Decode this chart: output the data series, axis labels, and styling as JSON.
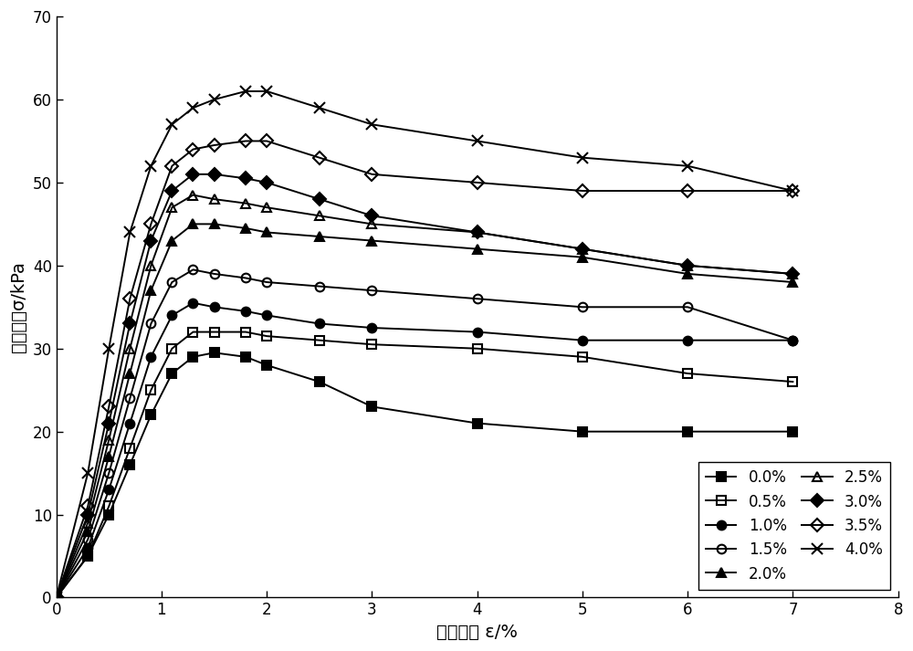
{
  "title": "",
  "xlabel": "轴向应变 ε/%",
  "ylabel": "轴向应力σ/kPa",
  "xlim": [
    0,
    8
  ],
  "ylim": [
    0,
    70
  ],
  "xticks": [
    0,
    1,
    2,
    3,
    4,
    5,
    6,
    7,
    8
  ],
  "yticks": [
    0,
    10,
    20,
    30,
    40,
    50,
    60,
    70
  ],
  "series": [
    {
      "label": "0.0%",
      "marker": "s",
      "fillstyle": "full",
      "x": [
        0,
        0.3,
        0.5,
        0.7,
        0.9,
        1.1,
        1.3,
        1.5,
        1.8,
        2.0,
        2.5,
        3.0,
        4.0,
        5.0,
        6.0,
        7.0
      ],
      "y": [
        0,
        5,
        10,
        16,
        22,
        27,
        29,
        29.5,
        29,
        28,
        26,
        23,
        21,
        20,
        20,
        20
      ]
    },
    {
      "label": "0.5%",
      "marker": "s",
      "fillstyle": "none",
      "x": [
        0,
        0.3,
        0.5,
        0.7,
        0.9,
        1.1,
        1.3,
        1.5,
        1.8,
        2.0,
        2.5,
        3.0,
        4.0,
        5.0,
        6.0,
        7.0
      ],
      "y": [
        0,
        5,
        11,
        18,
        25,
        30,
        32,
        32,
        32,
        31.5,
        31,
        30.5,
        30,
        29,
        27,
        26
      ]
    },
    {
      "label": "1.0%",
      "marker": "o",
      "fillstyle": "full",
      "x": [
        0,
        0.3,
        0.5,
        0.7,
        0.9,
        1.1,
        1.3,
        1.5,
        1.8,
        2.0,
        2.5,
        3.0,
        4.0,
        5.0,
        6.0,
        7.0
      ],
      "y": [
        0,
        6,
        13,
        21,
        29,
        34,
        35.5,
        35,
        34.5,
        34,
        33,
        32.5,
        32,
        31,
        31,
        31
      ]
    },
    {
      "label": "1.5%",
      "marker": "o",
      "fillstyle": "none",
      "x": [
        0,
        0.3,
        0.5,
        0.7,
        0.9,
        1.1,
        1.3,
        1.5,
        1.8,
        2.0,
        2.5,
        3.0,
        4.0,
        5.0,
        6.0,
        7.0
      ],
      "y": [
        0,
        7,
        15,
        24,
        33,
        38,
        39.5,
        39,
        38.5,
        38,
        37.5,
        37,
        36,
        35,
        35,
        31
      ]
    },
    {
      "label": "2.0%",
      "marker": "^",
      "fillstyle": "full",
      "x": [
        0,
        0.3,
        0.5,
        0.7,
        0.9,
        1.1,
        1.3,
        1.5,
        1.8,
        2.0,
        2.5,
        3.0,
        4.0,
        5.0,
        6.0,
        7.0
      ],
      "y": [
        0,
        8,
        17,
        27,
        37,
        43,
        45,
        45,
        44.5,
        44,
        43.5,
        43,
        42,
        41,
        39,
        38
      ]
    },
    {
      "label": "2.5%",
      "marker": "^",
      "fillstyle": "none",
      "x": [
        0,
        0.3,
        0.5,
        0.7,
        0.9,
        1.1,
        1.3,
        1.5,
        1.8,
        2.0,
        2.5,
        3.0,
        4.0,
        5.0,
        6.0,
        7.0
      ],
      "y": [
        0,
        9,
        19,
        30,
        40,
        47,
        48.5,
        48,
        47.5,
        47,
        46,
        45,
        44,
        42,
        40,
        39
      ]
    },
    {
      "label": "3.0%",
      "marker": "D",
      "fillstyle": "full",
      "x": [
        0,
        0.3,
        0.5,
        0.7,
        0.9,
        1.1,
        1.3,
        1.5,
        1.8,
        2.0,
        2.5,
        3.0,
        4.0,
        5.0,
        6.0,
        7.0
      ],
      "y": [
        0,
        10,
        21,
        33,
        43,
        49,
        51,
        51,
        50.5,
        50,
        48,
        46,
        44,
        42,
        40,
        39
      ]
    },
    {
      "label": "3.5%",
      "marker": "D",
      "fillstyle": "none",
      "x": [
        0,
        0.3,
        0.5,
        0.7,
        0.9,
        1.1,
        1.3,
        1.5,
        1.8,
        2.0,
        2.5,
        3.0,
        4.0,
        5.0,
        6.0,
        7.0
      ],
      "y": [
        0,
        11,
        23,
        36,
        45,
        52,
        54,
        54.5,
        55,
        55,
        53,
        51,
        50,
        49,
        49,
        49
      ]
    },
    {
      "label": "4.0%",
      "marker": "x",
      "fillstyle": "full",
      "x": [
        0,
        0.3,
        0.5,
        0.7,
        0.9,
        1.1,
        1.3,
        1.5,
        1.8,
        2.0,
        2.5,
        3.0,
        4.0,
        5.0,
        6.0,
        7.0
      ],
      "y": [
        0,
        15,
        30,
        44,
        52,
        57,
        59,
        60,
        61,
        61,
        59,
        57,
        55,
        53,
        52,
        49
      ]
    }
  ],
  "line_color": "#000000",
  "linewidth": 1.4,
  "markersize": 7,
  "figsize": [
    10.0,
    7.13
  ],
  "dpi": 100
}
